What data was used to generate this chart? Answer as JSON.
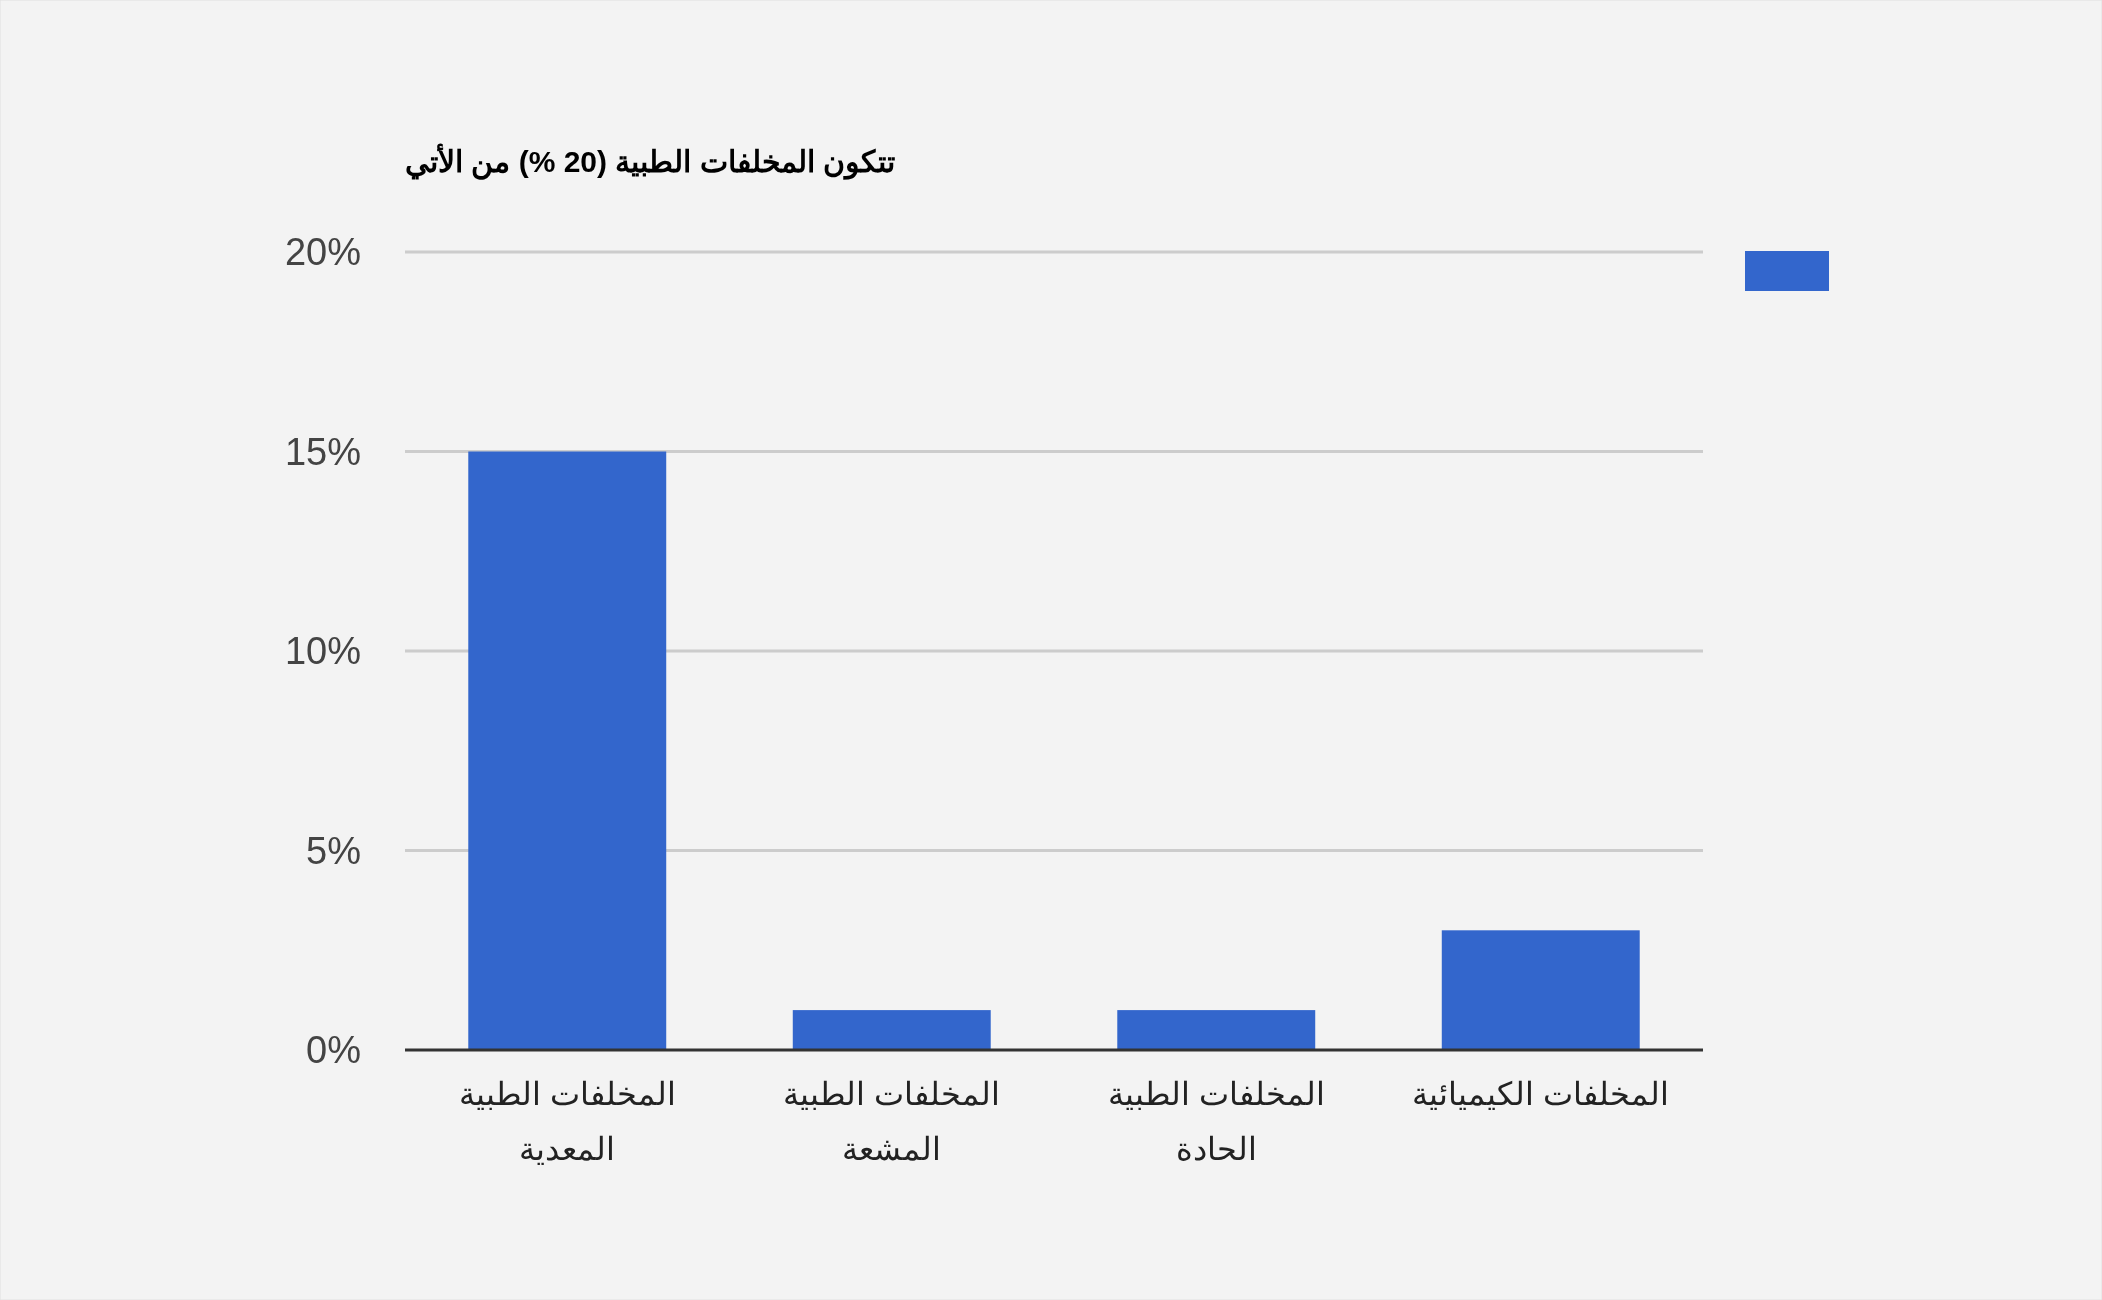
{
  "chart_data": {
    "type": "bar",
    "title": "تتكون المخلفات الطبية (20 %) من الأتي",
    "categories": [
      "المخلفات الطبية المعدية",
      "المخلفات الطبية المشعة",
      "المخلفات الطبية الحادة",
      "المخلفات الكيميائية"
    ],
    "values": [
      15,
      1,
      1,
      3
    ],
    "color": "#3366cc",
    "ylim": [
      0,
      20
    ],
    "yticks": [
      {
        "value": 0,
        "label": "0%"
      },
      {
        "value": 5,
        "label": "5%"
      },
      {
        "value": 10,
        "label": "10%"
      },
      {
        "value": 15,
        "label": "15%"
      },
      {
        "value": 20,
        "label": "20%"
      }
    ],
    "grid": "y"
  }
}
